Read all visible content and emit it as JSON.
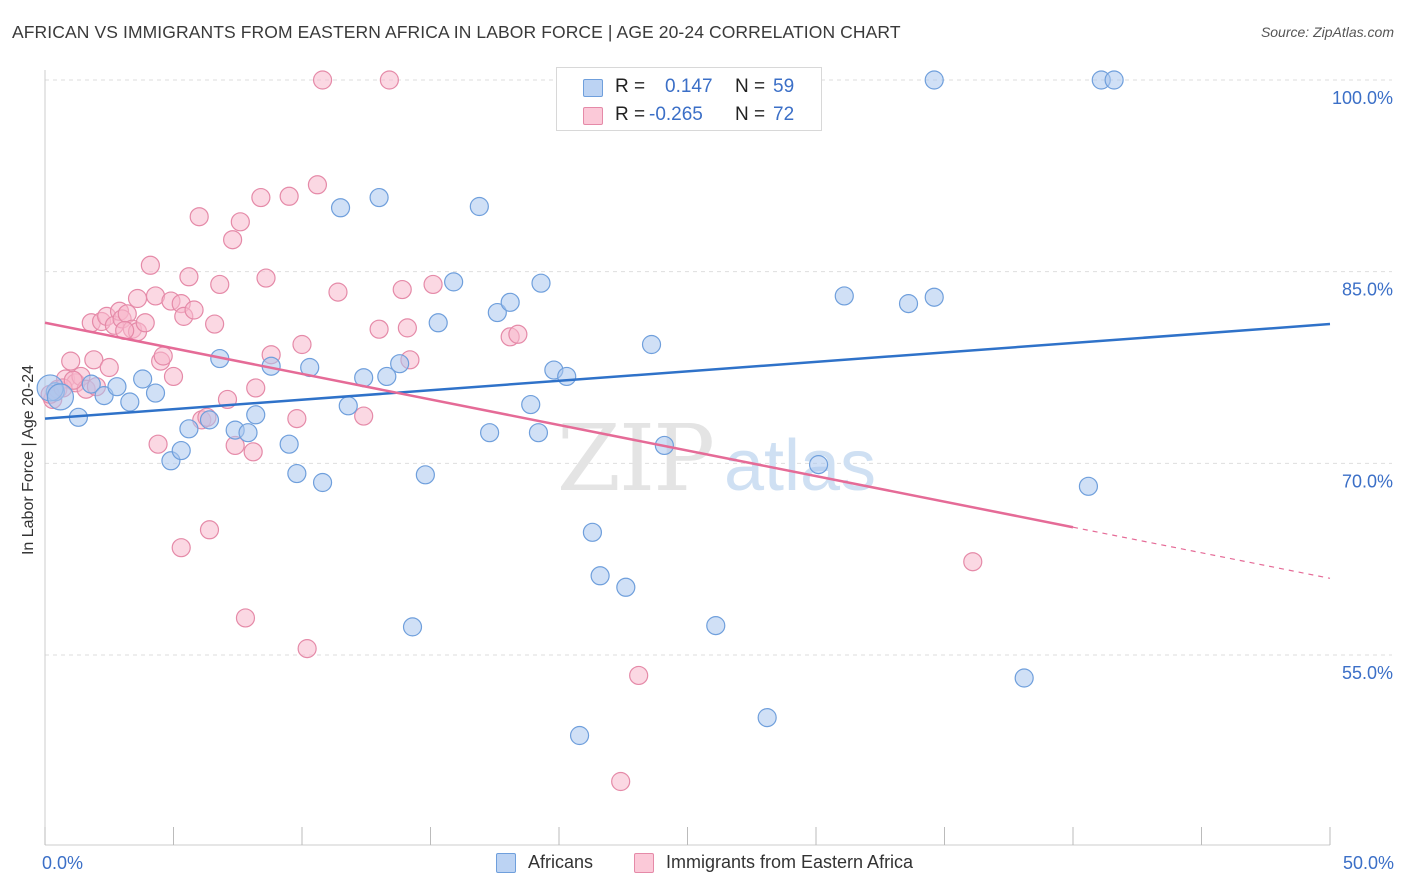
{
  "header": {
    "title": "AFRICAN VS IMMIGRANTS FROM EASTERN AFRICA IN LABOR FORCE | AGE 20-24 CORRELATION CHART",
    "source": "Source: ZipAtlas.com"
  },
  "watermark": {
    "zip": "ZIP",
    "atlas": "atlas"
  },
  "legend": {
    "r_label": "R =",
    "n_label": "N =",
    "items": [
      {
        "name": "Africans",
        "r": "0.147",
        "n": "59",
        "fill": "#a9c7ef",
        "stroke": "#6f9fdc"
      },
      {
        "name": "Immigrants from Eastern Africa",
        "r": "-0.265",
        "n": "72",
        "fill": "#f7b8cc",
        "stroke": "#e58aa8"
      }
    ]
  },
  "colors": {
    "blue_line": "#2f72c9",
    "pink_line": "#e56b97",
    "axis_label": "#3b6fc7",
    "grid": "#dedede"
  },
  "chart_data": {
    "type": "scatter",
    "title": "AFRICAN VS IMMIGRANTS FROM EASTERN AFRICA IN LABOR FORCE | AGE 20-24 CORRELATION CHART",
    "xlabel": "",
    "ylabel": "In Labor Force | Age 20-24",
    "xlim": [
      0,
      50
    ],
    "ylim": [
      42,
      102
    ],
    "x_tick_labels": [
      {
        "value": 0,
        "label": "0.0%"
      },
      {
        "value": 50,
        "label": "50.0%"
      }
    ],
    "y_tick_labels": [
      {
        "value": 55,
        "label": "55.0%"
      },
      {
        "value": 70,
        "label": "70.0%"
      },
      {
        "value": 85,
        "label": "85.0%"
      },
      {
        "value": 100,
        "label": "100.0%"
      }
    ],
    "grid": true,
    "legend_position": "top-center",
    "series": [
      {
        "name": "Africans",
        "r": 0.147,
        "n": 59,
        "trend": {
          "x": [
            0,
            50
          ],
          "y": [
            73.5,
            80.9
          ]
        },
        "points": [
          [
            0.4,
            75.6
          ],
          [
            1.3,
            73.6
          ],
          [
            1.8,
            76.2
          ],
          [
            2.3,
            75.3
          ],
          [
            2.8,
            76.0
          ],
          [
            3.3,
            74.8
          ],
          [
            3.8,
            76.6
          ],
          [
            4.3,
            75.5
          ],
          [
            4.9,
            70.2
          ],
          [
            5.3,
            71.0
          ],
          [
            5.6,
            72.7
          ],
          [
            6.4,
            73.4
          ],
          [
            6.8,
            78.2
          ],
          [
            7.4,
            72.6
          ],
          [
            7.9,
            72.4
          ],
          [
            8.2,
            73.8
          ],
          [
            8.8,
            77.6
          ],
          [
            9.5,
            71.5
          ],
          [
            9.8,
            69.2
          ],
          [
            10.3,
            77.5
          ],
          [
            10.8,
            68.5
          ],
          [
            11.5,
            90.0
          ],
          [
            11.8,
            74.5
          ],
          [
            12.4,
            76.7
          ],
          [
            13.0,
            90.8
          ],
          [
            13.3,
            76.8
          ],
          [
            13.8,
            77.8
          ],
          [
            14.3,
            57.2
          ],
          [
            14.8,
            69.1
          ],
          [
            15.3,
            81.0
          ],
          [
            15.9,
            84.2
          ],
          [
            16.9,
            90.1
          ],
          [
            17.3,
            72.4
          ],
          [
            17.6,
            81.8
          ],
          [
            18.1,
            82.6
          ],
          [
            18.9,
            74.6
          ],
          [
            19.2,
            72.4
          ],
          [
            19.3,
            84.1
          ],
          [
            19.8,
            77.3
          ],
          [
            20.3,
            76.8
          ],
          [
            20.8,
            48.7
          ],
          [
            21.3,
            64.6
          ],
          [
            21.6,
            61.2
          ],
          [
            22.6,
            60.3
          ],
          [
            23.6,
            79.3
          ],
          [
            24.1,
            71.4
          ],
          [
            26.1,
            57.3
          ],
          [
            28.1,
            50.1
          ],
          [
            30.1,
            69.9
          ],
          [
            31.1,
            83.1
          ],
          [
            33.6,
            82.5
          ],
          [
            34.6,
            100.0
          ],
          [
            34.6,
            83.0
          ],
          [
            38.1,
            53.2
          ],
          [
            40.6,
            68.2
          ],
          [
            41.1,
            100.0
          ],
          [
            41.6,
            100.0
          ],
          [
            0.2,
            75.9
          ],
          [
            0.6,
            75.2
          ]
        ]
      },
      {
        "name": "Immigrants from Eastern Africa",
        "r": -0.265,
        "n": 72,
        "trend": {
          "x": [
            0,
            40
          ],
          "y": [
            81.0,
            65.0
          ]
        },
        "trend_dashed": {
          "x": [
            40,
            50
          ],
          "y": [
            65.0,
            61.0
          ]
        },
        "points": [
          [
            0.3,
            75.0
          ],
          [
            0.5,
            75.8
          ],
          [
            0.8,
            76.6
          ],
          [
            1.0,
            78.0
          ],
          [
            1.2,
            76.3
          ],
          [
            1.4,
            76.8
          ],
          [
            1.6,
            75.8
          ],
          [
            1.8,
            81.0
          ],
          [
            1.9,
            78.1
          ],
          [
            2.2,
            81.1
          ],
          [
            2.4,
            81.5
          ],
          [
            2.5,
            77.5
          ],
          [
            2.7,
            80.8
          ],
          [
            2.9,
            81.9
          ],
          [
            3.0,
            81.3
          ],
          [
            3.2,
            81.7
          ],
          [
            3.4,
            80.5
          ],
          [
            3.6,
            80.3
          ],
          [
            3.6,
            82.9
          ],
          [
            3.9,
            81.0
          ],
          [
            4.1,
            85.5
          ],
          [
            4.3,
            83.1
          ],
          [
            4.4,
            71.5
          ],
          [
            4.5,
            78.0
          ],
          [
            4.6,
            78.4
          ],
          [
            4.9,
            82.7
          ],
          [
            5.0,
            76.8
          ],
          [
            5.3,
            82.5
          ],
          [
            5.3,
            63.4
          ],
          [
            5.4,
            81.5
          ],
          [
            5.6,
            84.6
          ],
          [
            5.8,
            82.0
          ],
          [
            6.0,
            89.3
          ],
          [
            6.1,
            73.4
          ],
          [
            6.4,
            64.8
          ],
          [
            6.6,
            80.9
          ],
          [
            6.8,
            84.0
          ],
          [
            7.1,
            75.0
          ],
          [
            7.3,
            87.5
          ],
          [
            7.4,
            71.4
          ],
          [
            7.6,
            88.9
          ],
          [
            7.8,
            57.9
          ],
          [
            8.1,
            70.9
          ],
          [
            8.2,
            75.9
          ],
          [
            8.4,
            90.8
          ],
          [
            8.6,
            84.5
          ],
          [
            8.8,
            78.5
          ],
          [
            9.5,
            90.9
          ],
          [
            9.8,
            73.5
          ],
          [
            10.0,
            79.3
          ],
          [
            10.2,
            55.5
          ],
          [
            10.6,
            91.8
          ],
          [
            10.8,
            100.0
          ],
          [
            11.4,
            83.4
          ],
          [
            12.4,
            73.7
          ],
          [
            13.0,
            80.5
          ],
          [
            13.4,
            100.0
          ],
          [
            13.9,
            83.6
          ],
          [
            14.1,
            80.6
          ],
          [
            14.2,
            78.1
          ],
          [
            15.1,
            84.0
          ],
          [
            18.1,
            79.9
          ],
          [
            18.4,
            80.1
          ],
          [
            23.1,
            53.4
          ],
          [
            22.4,
            45.1
          ],
          [
            36.1,
            62.3
          ],
          [
            0.2,
            75.4
          ],
          [
            0.7,
            75.9
          ],
          [
            1.1,
            76.5
          ],
          [
            2.0,
            76.0
          ],
          [
            3.1,
            80.4
          ],
          [
            6.3,
            73.6
          ]
        ]
      }
    ]
  }
}
